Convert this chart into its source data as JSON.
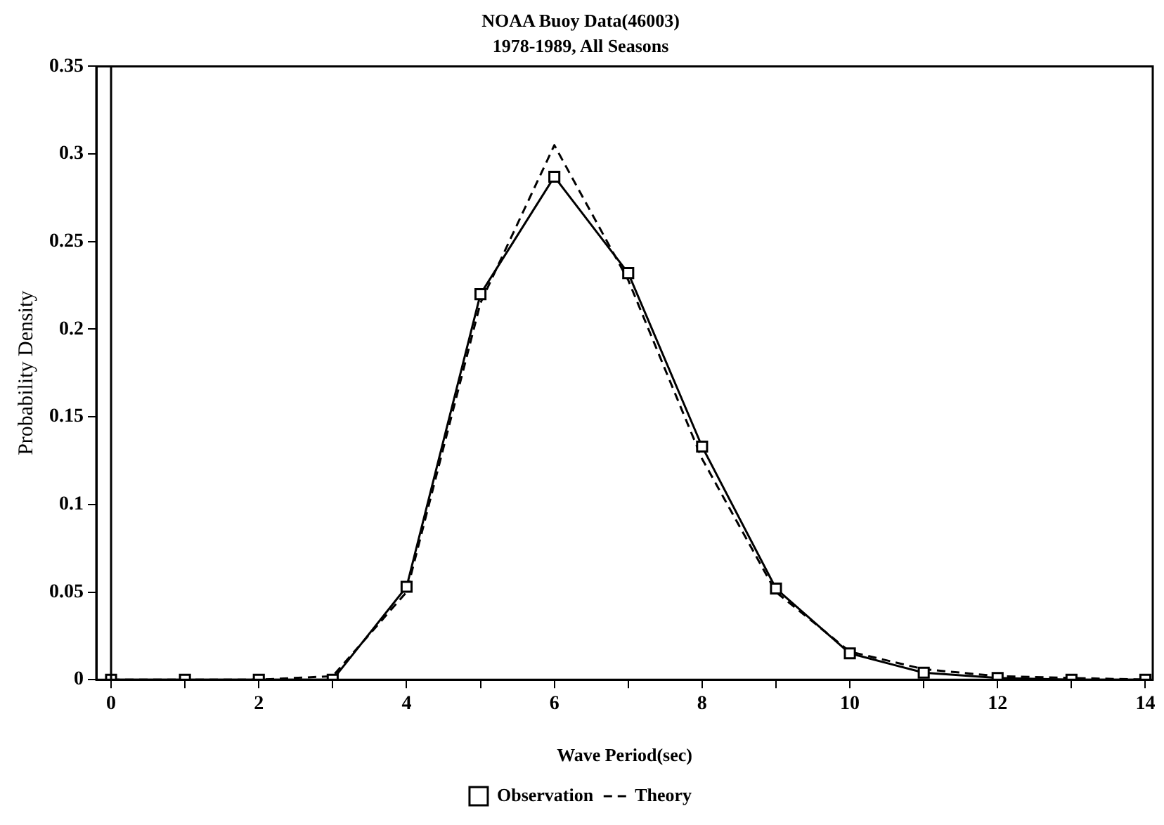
{
  "chart_data": {
    "type": "line",
    "title": "NOAA Buoy Data(46003)",
    "subtitle": "1978-1989, All Seasons",
    "xlabel": "Wave Period(sec)",
    "ylabel": "Probability Density",
    "x": [
      0,
      1,
      2,
      3,
      4,
      5,
      6,
      7,
      8,
      9,
      10,
      11,
      12,
      13,
      14
    ],
    "series": [
      {
        "name": "Observation",
        "color": "#000000",
        "marker": "square",
        "line_style": "solid",
        "values": [
          0,
          0,
          0,
          0,
          0.053,
          0.22,
          0.287,
          0.232,
          0.133,
          0.052,
          0.015,
          0.004,
          0.001,
          0,
          0
        ]
      },
      {
        "name": "Theory",
        "color": "#000000",
        "marker": "none",
        "line_style": "dashed",
        "values": [
          0,
          0,
          0,
          0.002,
          0.05,
          0.215,
          0.305,
          0.228,
          0.126,
          0.05,
          0.016,
          0.006,
          0.002,
          0.001,
          0
        ]
      }
    ],
    "xlim": [
      -0.2,
      14.1
    ],
    "xticks": [
      0,
      {
        "value": 1,
        "label": null
      },
      2,
      {
        "value": 3,
        "label": null
      },
      4,
      {
        "value": 5,
        "label": null
      },
      6,
      {
        "value": 7,
        "label": null
      },
      8,
      {
        "value": 9,
        "label": null
      },
      10,
      {
        "value": 11,
        "label": null
      },
      12,
      {
        "value": 13,
        "label": null
      },
      14
    ],
    "ylim": [
      0,
      0.35
    ],
    "yticks": [
      0,
      0.05,
      0.1,
      0.15,
      0.2,
      0.25,
      0.3,
      0.35
    ],
    "ref_lines": [
      {
        "axis": "x",
        "value": 0,
        "color": "#000000"
      }
    ],
    "grid": false,
    "legend": "bottom"
  }
}
